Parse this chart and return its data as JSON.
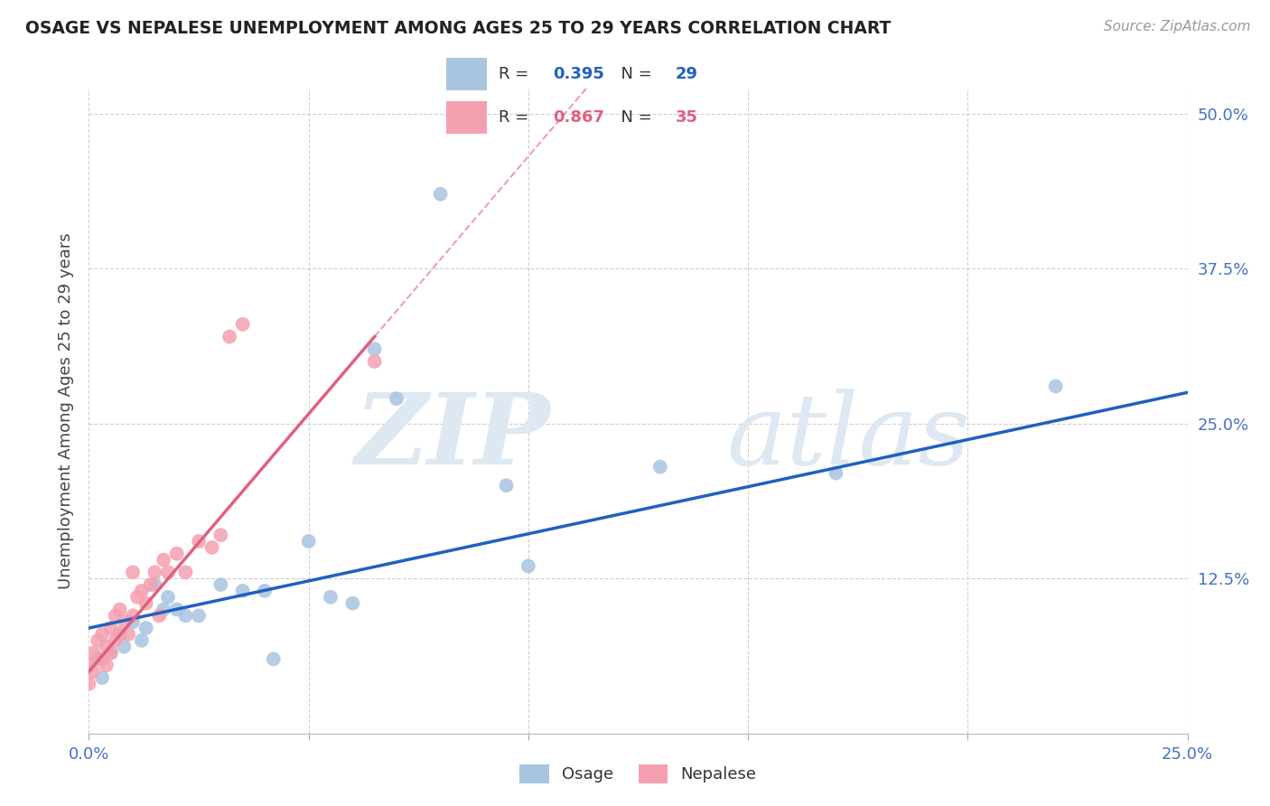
{
  "title": "OSAGE VS NEPALESE UNEMPLOYMENT AMONG AGES 25 TO 29 YEARS CORRELATION CHART",
  "source": "Source: ZipAtlas.com",
  "ylabel": "Unemployment Among Ages 25 to 29 years",
  "xlim": [
    0.0,
    0.25
  ],
  "ylim": [
    0.0,
    0.52
  ],
  "osage_R": 0.395,
  "osage_N": 29,
  "nepalese_R": 0.867,
  "nepalese_N": 35,
  "osage_color": "#a8c4e0",
  "nepalese_color": "#f4a0b0",
  "osage_line_color": "#2060c0",
  "nepalese_line_color": "#e06080",
  "osage_x": [
    0.002,
    0.003,
    0.005,
    0.007,
    0.008,
    0.01,
    0.012,
    0.013,
    0.015,
    0.017,
    0.018,
    0.02,
    0.022,
    0.025,
    0.03,
    0.035,
    0.04,
    0.042,
    0.05,
    0.055,
    0.06,
    0.065,
    0.07,
    0.08,
    0.095,
    0.1,
    0.13,
    0.17,
    0.22
  ],
  "osage_y": [
    0.06,
    0.045,
    0.065,
    0.08,
    0.07,
    0.09,
    0.075,
    0.085,
    0.12,
    0.1,
    0.11,
    0.1,
    0.095,
    0.095,
    0.12,
    0.115,
    0.115,
    0.06,
    0.155,
    0.11,
    0.105,
    0.31,
    0.27,
    0.435,
    0.2,
    0.135,
    0.215,
    0.21,
    0.28
  ],
  "nepalese_x": [
    0.0,
    0.0,
    0.001,
    0.001,
    0.002,
    0.003,
    0.003,
    0.004,
    0.004,
    0.005,
    0.005,
    0.006,
    0.006,
    0.007,
    0.007,
    0.008,
    0.009,
    0.01,
    0.01,
    0.011,
    0.012,
    0.013,
    0.014,
    0.015,
    0.016,
    0.017,
    0.018,
    0.02,
    0.022,
    0.025,
    0.028,
    0.03,
    0.032,
    0.035,
    0.065
  ],
  "nepalese_y": [
    0.055,
    0.04,
    0.065,
    0.05,
    0.075,
    0.06,
    0.08,
    0.07,
    0.055,
    0.085,
    0.065,
    0.095,
    0.075,
    0.1,
    0.08,
    0.09,
    0.08,
    0.13,
    0.095,
    0.11,
    0.115,
    0.105,
    0.12,
    0.13,
    0.095,
    0.14,
    0.13,
    0.145,
    0.13,
    0.155,
    0.15,
    0.16,
    0.32,
    0.33,
    0.3
  ],
  "watermark_zip": "ZIP",
  "watermark_atlas": "atlas",
  "background_color": "#ffffff",
  "grid_color": "#d0d0d0"
}
